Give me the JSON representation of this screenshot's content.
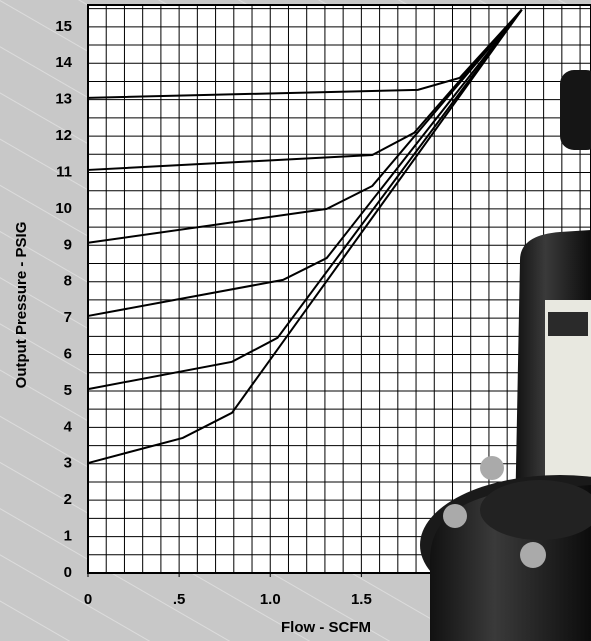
{
  "chart_data": {
    "type": "line",
    "x_label": "Flow - SCFM",
    "y_label": "Output Pressure - PSIG",
    "xlim": [
      0,
      2.76
    ],
    "ylim": [
      0,
      15.6
    ],
    "xticks": [
      0,
      {
        "value": 0.5,
        "label": ".5"
      },
      {
        "value": 1,
        "label": "1.0"
      },
      {
        "value": 1.5,
        "label": "1.5"
      }
    ],
    "yticks": [
      0,
      1,
      2,
      3,
      4,
      5,
      6,
      7,
      8,
      9,
      10,
      11,
      12,
      13,
      14,
      15
    ],
    "grid": true,
    "color": "#000000",
    "series": [
      {
        "x": [
          0,
          1.81,
          2.04,
          2.38
        ],
        "values": [
          13.05,
          13.27,
          13.6,
          15.47
        ]
      },
      {
        "x": [
          0,
          1.56,
          1.79,
          2.38
        ],
        "values": [
          11.07,
          11.48,
          12.09,
          15.47
        ]
      },
      {
        "x": [
          0,
          1.31,
          1.56,
          2.38
        ],
        "values": [
          9.07,
          10.0,
          10.63,
          15.47
        ]
      },
      {
        "x": [
          0,
          1.07,
          1.31,
          2.38
        ],
        "values": [
          7.06,
          8.05,
          8.65,
          15.47
        ]
      },
      {
        "x": [
          0,
          0.79,
          1.04,
          2.38
        ],
        "values": [
          5.05,
          5.8,
          6.46,
          15.47
        ]
      },
      {
        "x": [
          0,
          0.52,
          0.79,
          2.38
        ],
        "values": [
          3.02,
          3.71,
          4.4,
          15.47
        ]
      }
    ]
  }
}
